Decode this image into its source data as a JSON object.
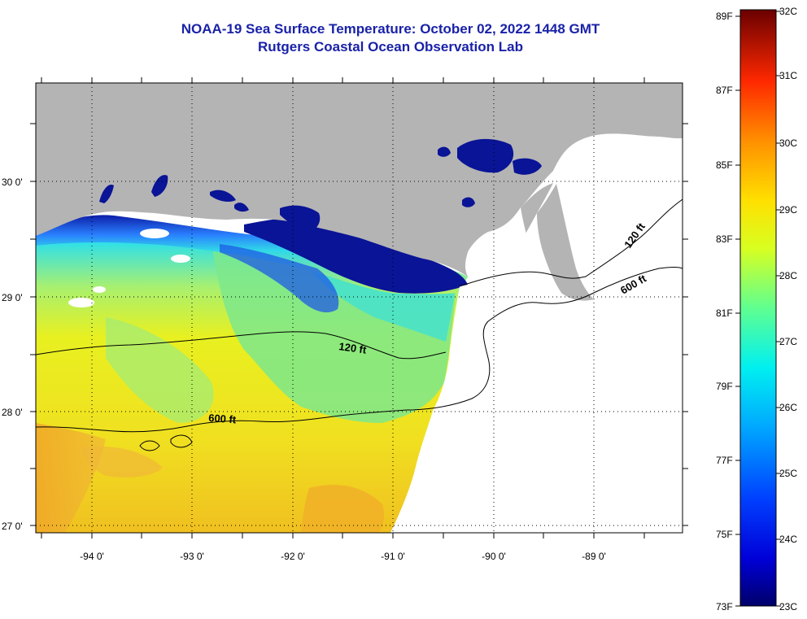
{
  "title": "NOAA-19 Sea Surface Temperature:  October 02, 2022 1448 GMT",
  "subtitle": "Rutgers Coastal Ocean Observation Lab",
  "map": {
    "longitude_labels": [
      "-94 0'",
      "-93 0'",
      "-92 0'",
      "-91 0'",
      "-90 0'",
      "-89 0'"
    ],
    "latitude_labels": [
      "30 0'",
      "29 0'",
      "28 0'",
      "27 0'"
    ],
    "contour_labels": [
      "120 ft",
      "600 ft",
      "120 ft",
      "600 ft"
    ],
    "colors": {
      "land": "#b4b4b4",
      "no_data": "#ffffff",
      "coastal_cold": "#0a1496"
    }
  },
  "colorbar": {
    "fahrenheit_labels": [
      "89F",
      "87F",
      "85F",
      "83F",
      "81F",
      "79F",
      "77F",
      "75F",
      "73F"
    ],
    "celsius_labels": [
      "32C",
      "31C",
      "30C",
      "29C",
      "28C",
      "27C",
      "26C",
      "25C",
      "24C",
      "23C"
    ],
    "range_c": [
      23,
      32
    ]
  }
}
